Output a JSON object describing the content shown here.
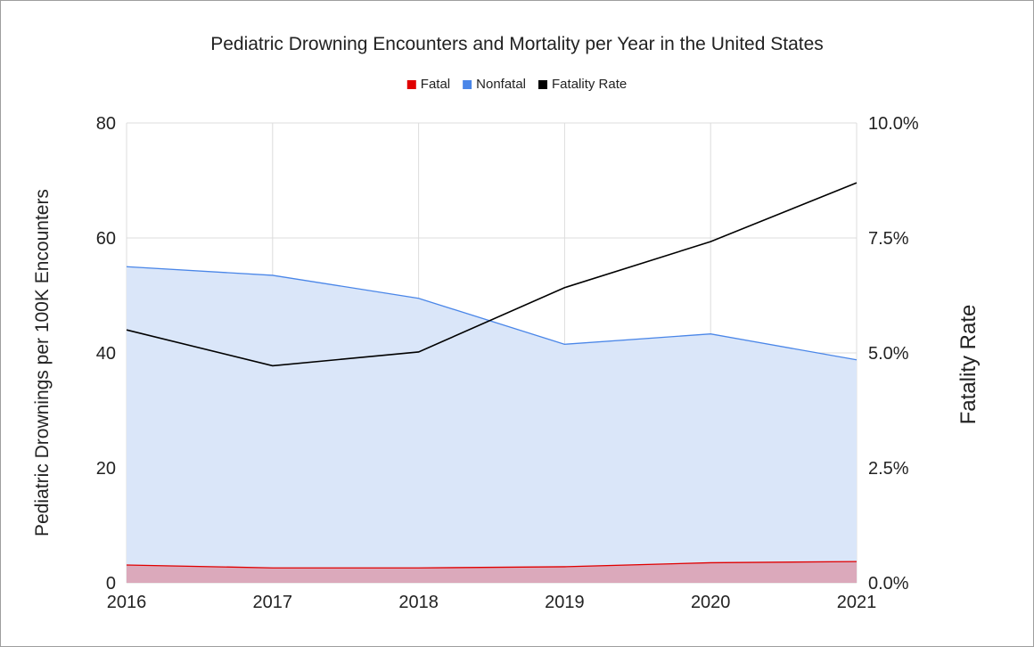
{
  "chart_data": {
    "type": "area",
    "title": "Pediatric Drowning Encounters and Mortality per Year in the United States",
    "ylabel": "Pediatric Drownings per 100K Encounters",
    "y2label": "Fatality Rate",
    "xlabel": "",
    "categories": [
      "2016",
      "2017",
      "2018",
      "2019",
      "2020",
      "2021"
    ],
    "ylim": [
      0,
      80
    ],
    "yticks": [
      "0",
      "20",
      "40",
      "60",
      "80"
    ],
    "y2lim": [
      0,
      10
    ],
    "y2ticks": [
      "0.0%",
      "2.5%",
      "5.0%",
      "7.5%",
      "10.0%"
    ],
    "grid": true,
    "legend_position": "top",
    "series": [
      {
        "name": "Fatal",
        "kind": "area",
        "axis": "left",
        "color": "#e00000",
        "fill": "#dba9bb",
        "values": [
          3.1,
          2.6,
          2.6,
          2.8,
          3.5,
          3.7
        ]
      },
      {
        "name": "Nonfatal",
        "kind": "area",
        "axis": "left",
        "color": "#4a86e8",
        "fill": "#dae6f9",
        "values": [
          55,
          53.5,
          49.5,
          41.5,
          43.3,
          38.8
        ]
      },
      {
        "name": "Fatality Rate",
        "kind": "line",
        "axis": "right",
        "color": "#000000",
        "values": [
          5.5,
          4.72,
          5.02,
          6.42,
          7.42,
          8.7
        ]
      }
    ]
  }
}
